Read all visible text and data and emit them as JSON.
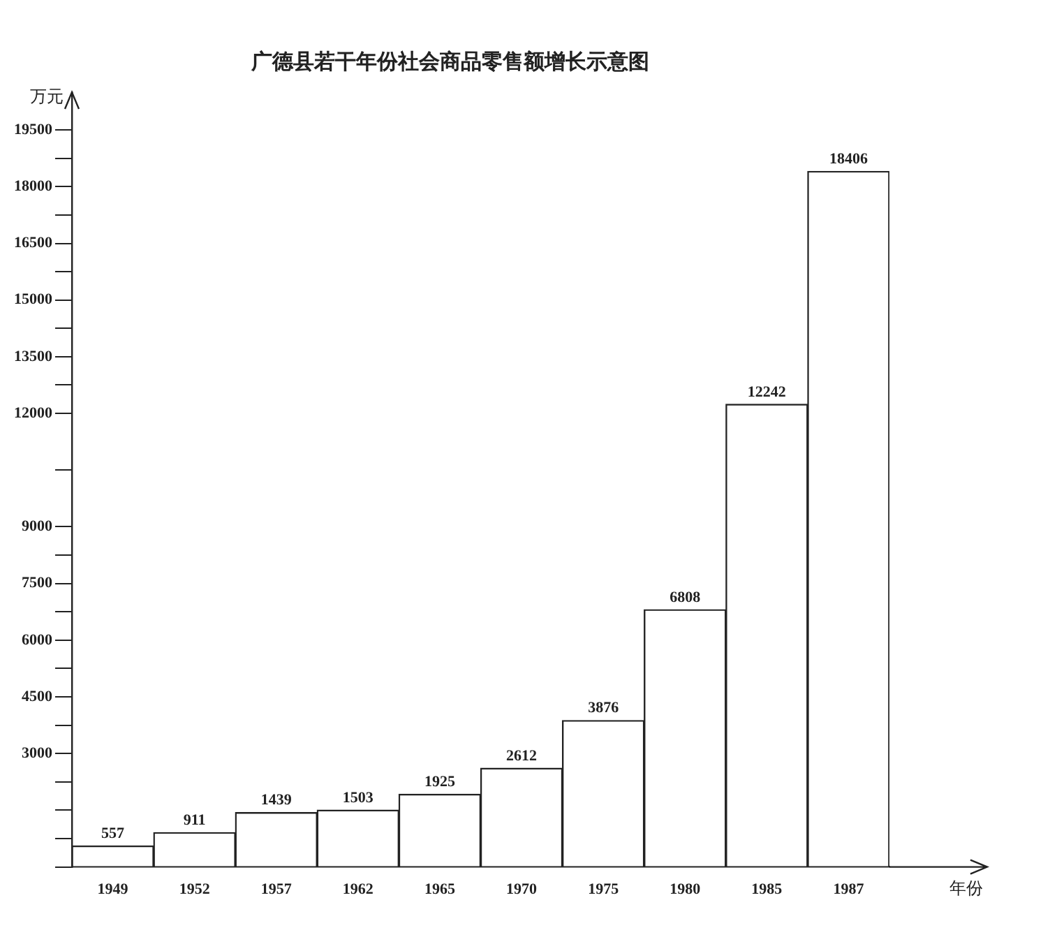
{
  "chart_data": {
    "type": "bar",
    "title": "广德县若干年份社会商品零售额增长示意图",
    "xlabel": "年份",
    "ylabel": "万元",
    "categories": [
      "1949",
      "1952",
      "1957",
      "1962",
      "1965",
      "1970",
      "1975",
      "1980",
      "1985",
      "1987"
    ],
    "values": [
      557,
      911,
      1439,
      1503,
      1925,
      2612,
      3876,
      6808,
      12242,
      18406
    ],
    "color": "#ffffff",
    "data_labels": true,
    "grid": false,
    "legend": false,
    "ylim": [
      0,
      20500
    ],
    "yticks": [
      {
        "value": 0,
        "label": null
      },
      {
        "value": 750,
        "label": null
      },
      {
        "value": 1500,
        "label": null
      },
      {
        "value": 2250,
        "label": null
      },
      3000,
      {
        "value": 3750,
        "label": null
      },
      4500,
      {
        "value": 5250,
        "label": null
      },
      6000,
      {
        "value": 6750,
        "label": null
      },
      7500,
      {
        "value": 8250,
        "label": null
      },
      9000,
      {
        "value": 10500,
        "label": null
      },
      12000,
      {
        "value": 12750,
        "label": null
      },
      13500,
      {
        "value": 14250,
        "label": null
      },
      15000,
      {
        "value": 15750,
        "label": null
      },
      16500,
      {
        "value": 17250,
        "label": null
      },
      18000,
      {
        "value": 18750,
        "label": null
      },
      19500
    ]
  }
}
